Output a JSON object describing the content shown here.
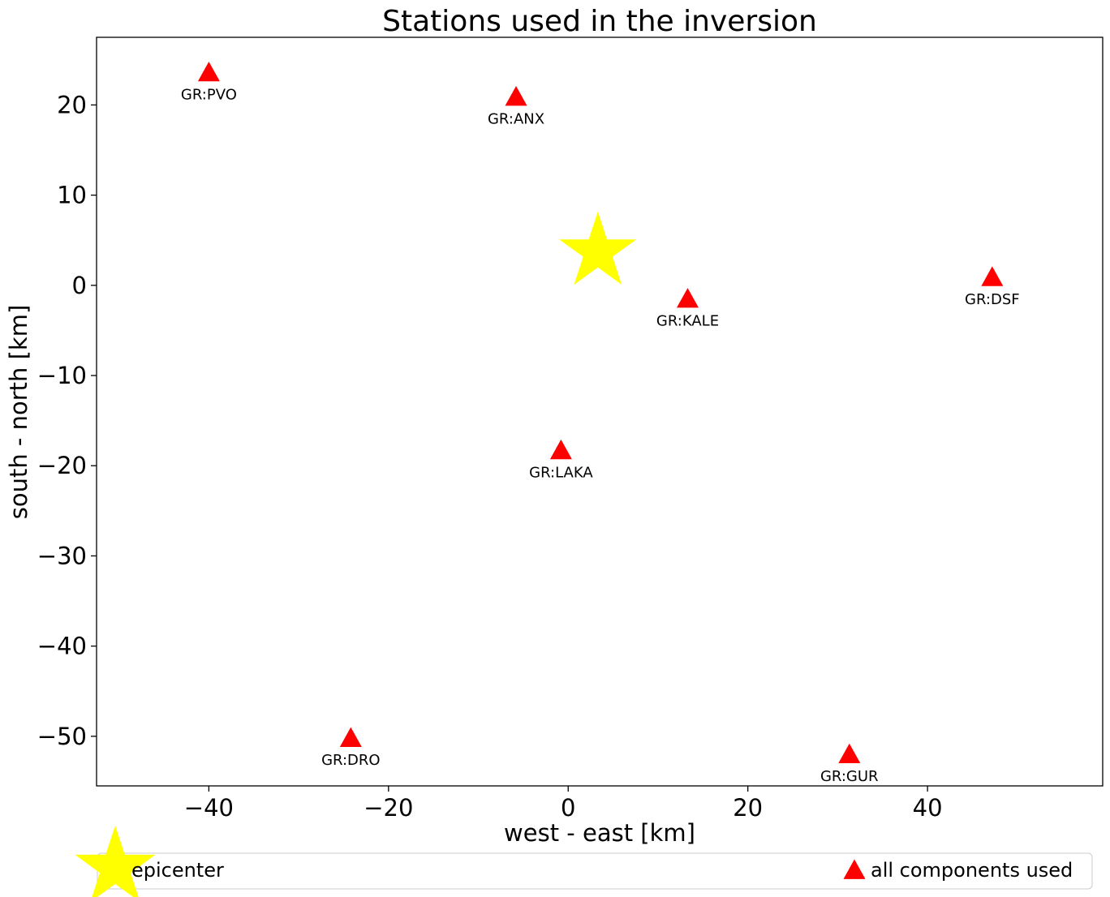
{
  "chart_data": {
    "type": "scatter",
    "title": "Stations used in the inversion",
    "xlabel": "west - east [km]",
    "ylabel": "south - north [km]",
    "xlim": [
      -52.5,
      59.5
    ],
    "ylim": [
      -55.5,
      27.5
    ],
    "xticks": [
      -40,
      -20,
      0,
      20,
      40
    ],
    "yticks": [
      -50,
      -40,
      -30,
      -20,
      -10,
      0,
      10,
      20
    ],
    "grid": false,
    "epicenter": {
      "x": 3.3,
      "y": 3.7,
      "color": "#ffff00"
    },
    "stations": [
      {
        "label": "GR:PVO",
        "x": -40.0,
        "y": 23.5
      },
      {
        "label": "GR:ANX",
        "x": -5.8,
        "y": 20.8
      },
      {
        "label": "GR:KALE",
        "x": 13.3,
        "y": -1.6
      },
      {
        "label": "GR:DSF",
        "x": 47.2,
        "y": 0.8
      },
      {
        "label": "GR:LAKA",
        "x": -0.8,
        "y": -18.4
      },
      {
        "label": "GR:DRO",
        "x": -24.2,
        "y": -50.3
      },
      {
        "label": "GR:GUR",
        "x": 31.3,
        "y": -52.1
      }
    ],
    "station_color": "#ff0000",
    "legend": {
      "placement": "bottom",
      "entries": [
        {
          "name": "epicenter",
          "symbol": "star",
          "color": "#ffff00"
        },
        {
          "name": "all components used",
          "symbol": "triangle",
          "color": "#ff0000"
        }
      ]
    }
  }
}
